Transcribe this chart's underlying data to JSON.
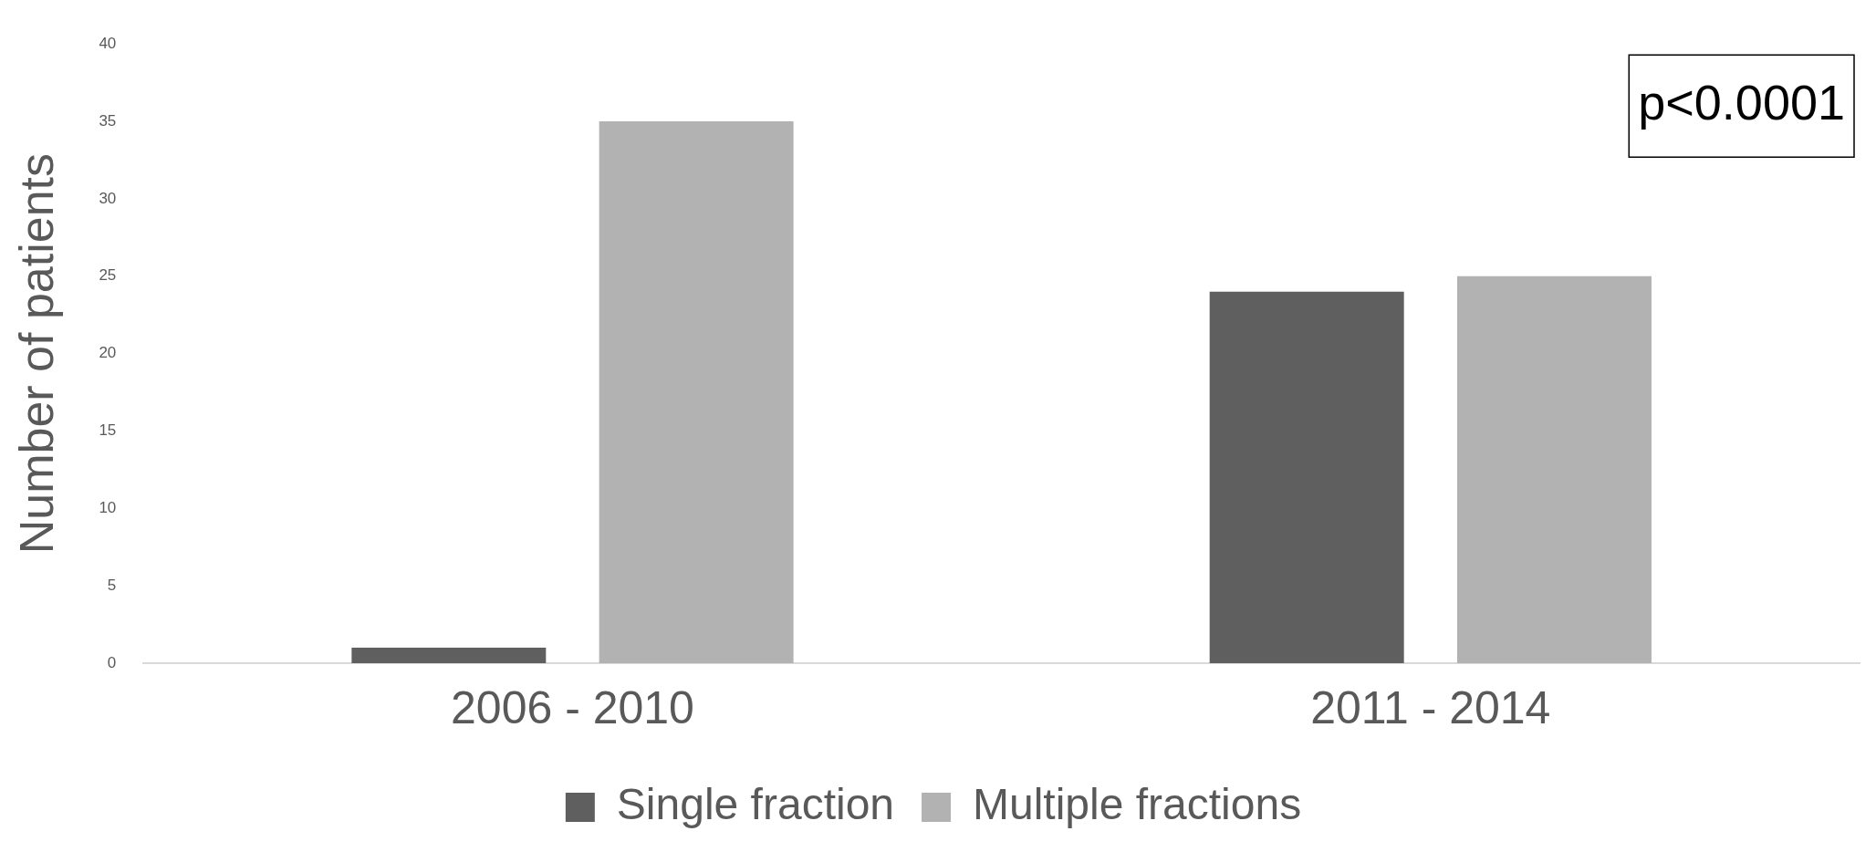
{
  "chart_data": {
    "type": "bar",
    "ylabel": "Number of patients",
    "categories": [
      "2006 - 2010",
      "2011 - 2014"
    ],
    "series": [
      {
        "name": "Single fraction",
        "color": "#5f5f5f",
        "values": [
          1,
          24
        ]
      },
      {
        "name": "Multiple fractions",
        "color": "#b2b2b2",
        "values": [
          35,
          25
        ]
      }
    ],
    "ylim": [
      0,
      40
    ],
    "yticks": [
      0,
      5,
      10,
      15,
      20,
      25,
      30,
      35,
      40
    ],
    "grid": false,
    "legend": "bottom",
    "annotations": [
      "p<0.0001"
    ]
  }
}
